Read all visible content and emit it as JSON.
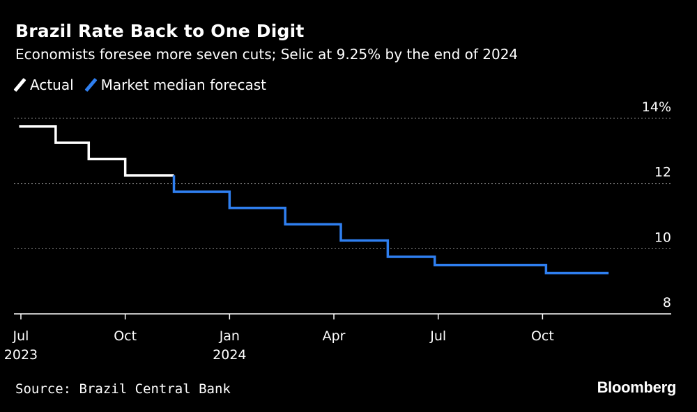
{
  "chart_data": {
    "type": "line",
    "title": "Brazil Rate Back to One Digit",
    "subtitle": "Economists foresee more seven cuts; Selic at 9.25% by the end of 2024",
    "y_unit_label": "14%",
    "ylim": [
      8,
      14
    ],
    "y_ticks": [
      {
        "value": 14,
        "label": "14%"
      },
      {
        "value": 12,
        "label": "12"
      },
      {
        "value": 10,
        "label": "10"
      },
      {
        "value": 8,
        "label": "8"
      }
    ],
    "x_ticks": [
      {
        "month_index": 0,
        "label": "Jul",
        "label2": "2023"
      },
      {
        "month_index": 3,
        "label": "Oct",
        "label2": ""
      },
      {
        "month_index": 6,
        "label": "Jan",
        "label2": "2024"
      },
      {
        "month_index": 9,
        "label": "Apr",
        "label2": ""
      },
      {
        "month_index": 12,
        "label": "Jul",
        "label2": ""
      },
      {
        "month_index": 15,
        "label": "Oct",
        "label2": ""
      }
    ],
    "xlim_months": [
      -0.2,
      18.7
    ],
    "series": [
      {
        "name": "Actual",
        "color": "#ffffff",
        "steps": [
          {
            "x": -0.05,
            "y": 13.75
          },
          {
            "x": 1.0,
            "y": 13.25
          },
          {
            "x": 1.95,
            "y": 12.75
          },
          {
            "x": 3.0,
            "y": 12.25
          },
          {
            "x": 4.4,
            "y": 12.25
          }
        ]
      },
      {
        "name": "Market median forecast",
        "color": "#2f7ff0",
        "steps": [
          {
            "x": 4.4,
            "y": 12.25
          },
          {
            "x": 4.4,
            "y": 11.75
          },
          {
            "x": 6.0,
            "y": 11.25
          },
          {
            "x": 7.6,
            "y": 10.75
          },
          {
            "x": 9.2,
            "y": 10.25
          },
          {
            "x": 10.55,
            "y": 9.75
          },
          {
            "x": 11.9,
            "y": 9.5
          },
          {
            "x": 15.1,
            "y": 9.25
          },
          {
            "x": 16.9,
            "y": 9.25
          }
        ]
      }
    ]
  },
  "legend": [
    {
      "label": "Actual",
      "color": "#ffffff"
    },
    {
      "label": "Market median forecast",
      "color": "#2f7ff0"
    }
  ],
  "source": "Source: Brazil Central Bank",
  "brand": "Bloomberg"
}
